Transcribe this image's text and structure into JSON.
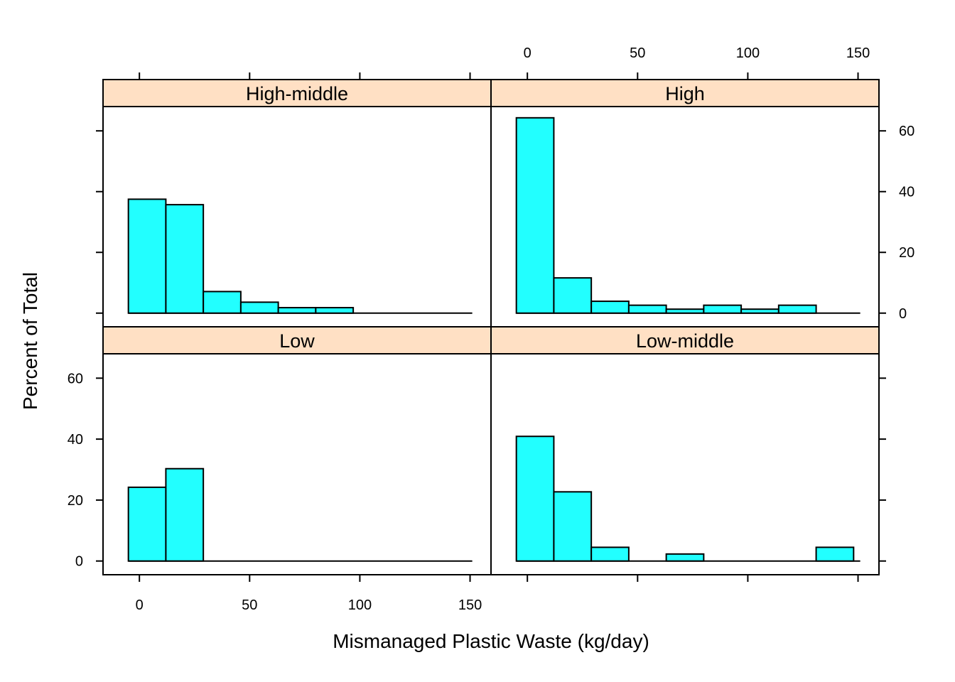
{
  "chart_data": {
    "type": "histogram",
    "xlabel": "Mismanaged Plastic Waste (kg/day)",
    "ylabel": "Percent of Total",
    "xlim": [
      -16.5,
      159.5
    ],
    "ylim": [
      -4.5,
      68
    ],
    "x_ticks": [
      0,
      50,
      100,
      150
    ],
    "y_ticks": [
      0,
      20,
      40,
      60
    ],
    "bin_edges": [
      -5,
      12,
      29,
      46,
      63,
      80,
      97,
      114,
      131,
      148,
      151
    ],
    "panels": [
      {
        "name": "High-middle",
        "values": [
          37.5,
          35.7,
          7.1,
          3.6,
          1.8,
          1.8,
          0,
          0,
          0,
          0
        ]
      },
      {
        "name": "High",
        "values": [
          64.3,
          11.6,
          3.9,
          2.6,
          1.3,
          2.6,
          1.3,
          2.6,
          0,
          0
        ]
      },
      {
        "name": "Low",
        "values": [
          24.2,
          30.3,
          0,
          0,
          0,
          0,
          0,
          0,
          0,
          0
        ]
      },
      {
        "name": "Low-middle",
        "values": [
          40.9,
          22.7,
          4.5,
          0,
          2.3,
          0,
          0,
          0,
          4.5,
          0
        ]
      }
    ]
  }
}
